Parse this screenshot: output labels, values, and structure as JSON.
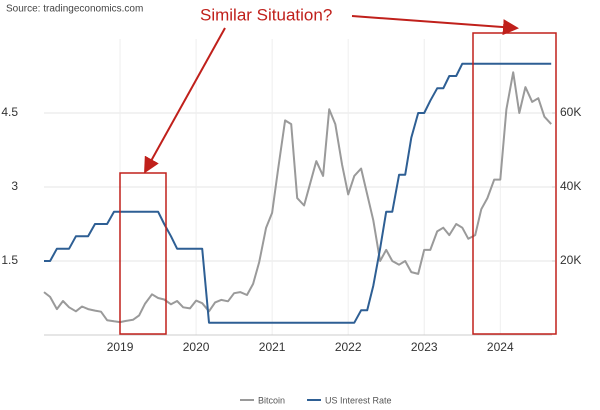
{
  "chart_data": {
    "type": "line",
    "source": "Source: tradingeconomics.com",
    "annotation": "Similar Situation?",
    "x": [
      2018.0,
      2018.08,
      2018.17,
      2018.25,
      2018.33,
      2018.42,
      2018.5,
      2018.58,
      2018.67,
      2018.75,
      2018.83,
      2018.92,
      2019.0,
      2019.08,
      2019.17,
      2019.25,
      2019.33,
      2019.42,
      2019.5,
      2019.58,
      2019.67,
      2019.75,
      2019.83,
      2019.92,
      2020.0,
      2020.08,
      2020.17,
      2020.25,
      2020.33,
      2020.42,
      2020.5,
      2020.58,
      2020.67,
      2020.75,
      2020.83,
      2020.92,
      2021.0,
      2021.08,
      2021.17,
      2021.25,
      2021.33,
      2021.42,
      2021.5,
      2021.58,
      2021.67,
      2021.75,
      2021.83,
      2021.92,
      2022.0,
      2022.08,
      2022.17,
      2022.25,
      2022.33,
      2022.42,
      2022.5,
      2022.58,
      2022.67,
      2022.75,
      2022.83,
      2022.92,
      2023.0,
      2023.08,
      2023.17,
      2023.25,
      2023.33,
      2023.42,
      2023.5,
      2023.58,
      2023.67,
      2023.75,
      2023.83,
      2023.92,
      2024.0,
      2024.08,
      2024.17,
      2024.25,
      2024.33,
      2024.42,
      2024.5,
      2024.58,
      2024.67
    ],
    "series": [
      {
        "name": "Bitcoin",
        "color": "#9a9a9a",
        "axis": "y2",
        "values": [
          11600,
          10300,
          7000,
          9200,
          7500,
          6400,
          7700,
          7000,
          6600,
          6300,
          4000,
          3700,
          3500,
          3800,
          4100,
          5300,
          8500,
          11000,
          10000,
          9600,
          8300,
          9200,
          7500,
          7200,
          9300,
          8600,
          6400,
          8800,
          9500,
          9100,
          11300,
          11600,
          10800,
          13800,
          19700,
          29000,
          33000,
          45000,
          58000,
          57000,
          37000,
          35000,
          41000,
          47000,
          43000,
          61000,
          57000,
          46000,
          38000,
          43000,
          45000,
          38000,
          31000,
          20000,
          23000,
          20000,
          19000,
          20000,
          17000,
          16500,
          23000,
          23000,
          28000,
          29000,
          27000,
          30000,
          29000,
          26000,
          27000,
          34000,
          37000,
          42000,
          42000,
          61000,
          71000,
          60000,
          67000,
          63000,
          64000,
          59000,
          57000
        ]
      },
      {
        "name": "US Interest Rate",
        "color": "#2e5f94",
        "values": [
          1.5,
          1.5,
          1.75,
          1.75,
          1.75,
          2.0,
          2.0,
          2.0,
          2.25,
          2.25,
          2.25,
          2.5,
          2.5,
          2.5,
          2.5,
          2.5,
          2.5,
          2.5,
          2.5,
          2.25,
          2.0,
          1.75,
          1.75,
          1.75,
          1.75,
          1.75,
          0.25,
          0.25,
          0.25,
          0.25,
          0.25,
          0.25,
          0.25,
          0.25,
          0.25,
          0.25,
          0.25,
          0.25,
          0.25,
          0.25,
          0.25,
          0.25,
          0.25,
          0.25,
          0.25,
          0.25,
          0.25,
          0.25,
          0.25,
          0.25,
          0.5,
          0.5,
          1.0,
          1.75,
          2.5,
          2.5,
          3.25,
          3.25,
          4.0,
          4.5,
          4.5,
          4.75,
          5.0,
          5.0,
          5.25,
          5.25,
          5.5,
          5.5,
          5.5,
          5.5,
          5.5,
          5.5,
          5.5,
          5.5,
          5.5,
          5.5,
          5.5,
          5.5,
          5.5,
          5.5,
          5.5
        ]
      }
    ],
    "xlim": [
      2018,
      2024.68
    ],
    "xticks": [
      2019,
      2020,
      2021,
      2022,
      2023,
      2024
    ],
    "ylim": [
      0,
      6
    ],
    "yticks": [
      1.5,
      3,
      4.5
    ],
    "y2lim": [
      0,
      80000
    ],
    "y2ticks": [
      {
        "value": 20000,
        "label": "20K"
      },
      {
        "value": 40000,
        "label": "40K"
      },
      {
        "value": 60000,
        "label": "60K"
      }
    ],
    "grid": true,
    "legend": "bottom"
  }
}
